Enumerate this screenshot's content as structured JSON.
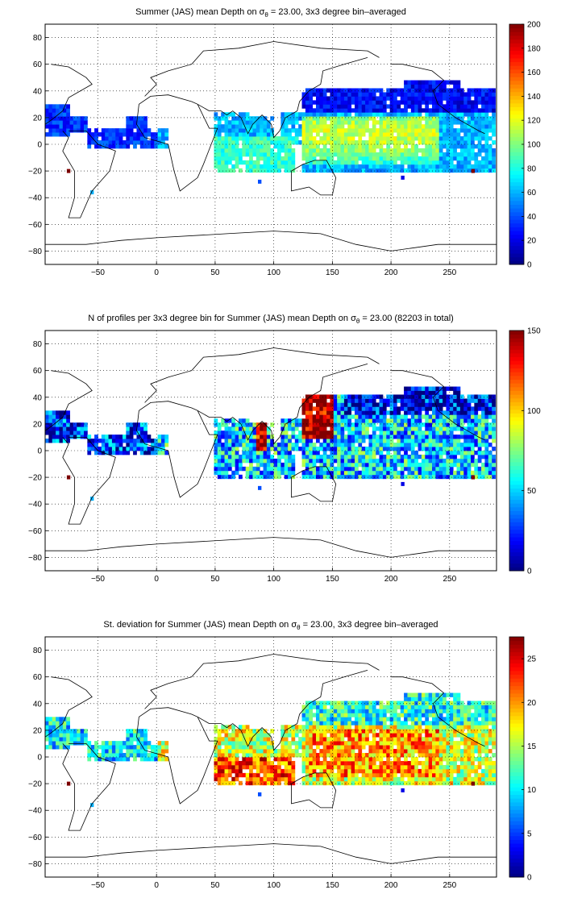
{
  "chart_data": [
    {
      "type": "heatmap",
      "title_prefix": "Summer (JAS) mean Depth on ",
      "title_sigma": "σ",
      "title_sub": "θ",
      "title_suffix": " = 23.00, 3x3 degree bin–averaged",
      "xlabel": "",
      "ylabel": "",
      "xlim": [
        -95,
        290
      ],
      "ylim": [
        -90,
        90
      ],
      "xticks": [
        -50,
        0,
        50,
        100,
        150,
        200,
        250
      ],
      "xtick_labels": [
        "−50",
        "0",
        "50",
        "100",
        "150",
        "200",
        "250"
      ],
      "yticks": [
        80,
        60,
        40,
        20,
        0,
        -20,
        -40,
        -60,
        -80
      ],
      "ytick_labels": [
        "80",
        "60",
        "40",
        "20",
        "0",
        "−20",
        "−40",
        "−60",
        "−80"
      ],
      "grid": true,
      "colormap": "jet",
      "clim": [
        0,
        200
      ],
      "cbar_ticks": [
        0,
        20,
        40,
        60,
        80,
        100,
        120,
        140,
        160,
        180,
        200
      ],
      "cbar_tick_labels": [
        "0",
        "20",
        "40",
        "60",
        "80",
        "100",
        "120",
        "140",
        "160",
        "180",
        "200"
      ],
      "field": "depth"
    },
    {
      "type": "heatmap",
      "title_prefix": "N of profiles per 3x3 degree bin for Summer (JAS) mean Depth on ",
      "title_sigma": "σ",
      "title_sub": "θ",
      "title_suffix": " = 23.00 (82203 in total)",
      "xlabel": "",
      "ylabel": "",
      "xlim": [
        -95,
        290
      ],
      "ylim": [
        -90,
        90
      ],
      "xticks": [
        -50,
        0,
        50,
        100,
        150,
        200,
        250
      ],
      "xtick_labels": [
        "−50",
        "0",
        "50",
        "100",
        "150",
        "200",
        "250"
      ],
      "yticks": [
        80,
        60,
        40,
        20,
        0,
        -20,
        -40,
        -60,
        -80
      ],
      "ytick_labels": [
        "80",
        "60",
        "40",
        "20",
        "0",
        "−20",
        "−40",
        "−60",
        "−80"
      ],
      "grid": true,
      "colormap": "jet",
      "clim": [
        0,
        150
      ],
      "cbar_ticks": [
        0,
        50,
        100,
        150
      ],
      "cbar_tick_labels": [
        "0",
        "50",
        "100",
        "150"
      ],
      "field": "count"
    },
    {
      "type": "heatmap",
      "title_prefix": "St. deviation for Summer (JAS) mean Depth on ",
      "title_sigma": "σ",
      "title_sub": "θ",
      "title_suffix": " = 23.00, 3x3 degree bin–averaged",
      "xlabel": "",
      "ylabel": "",
      "xlim": [
        -95,
        290
      ],
      "ylim": [
        -90,
        90
      ],
      "xticks": [
        -50,
        0,
        50,
        100,
        150,
        200,
        250
      ],
      "xtick_labels": [
        "−50",
        "0",
        "50",
        "100",
        "150",
        "200",
        "250"
      ],
      "yticks": [
        80,
        60,
        40,
        20,
        0,
        -20,
        -40,
        -60,
        -80
      ],
      "ytick_labels": [
        "80",
        "60",
        "40",
        "20",
        "0",
        "−20",
        "−40",
        "−60",
        "−80"
      ],
      "grid": true,
      "colormap": "jet",
      "clim": [
        0,
        27.5
      ],
      "cbar_ticks": [
        0,
        5,
        10,
        15,
        20,
        25
      ],
      "cbar_tick_labels": [
        "0",
        "5",
        "10",
        "15",
        "20",
        "25"
      ],
      "field": "std"
    }
  ],
  "ocean_regions": [
    {
      "lon": [
        -95,
        -75
      ],
      "lat": [
        5,
        30
      ]
    },
    {
      "lon": [
        -90,
        -60
      ],
      "lat": [
        8,
        22
      ]
    },
    {
      "lon": [
        -60,
        10
      ],
      "lat": [
        -3,
        12
      ]
    },
    {
      "lon": [
        -25,
        -8
      ],
      "lat": [
        12,
        22
      ]
    },
    {
      "lon": [
        48,
        80
      ],
      "lat": [
        -20,
        25
      ]
    },
    {
      "lon": [
        80,
        100
      ],
      "lat": [
        -20,
        22
      ]
    },
    {
      "lon": [
        100,
        118
      ],
      "lat": [
        -22,
        5
      ]
    },
    {
      "lon": [
        105,
        125
      ],
      "lat": [
        0,
        25
      ]
    },
    {
      "lon": [
        125,
        290
      ],
      "lat": [
        -20,
        42
      ]
    },
    {
      "lon": [
        210,
        260
      ],
      "lat": [
        28,
        48
      ]
    }
  ],
  "sparse_points": [
    {
      "lon": -75,
      "lat": -20,
      "v": 1.0
    },
    {
      "lon": 270,
      "lat": -20,
      "v": 1.0
    },
    {
      "lon": 88,
      "lat": -28,
      "v": 0.2
    },
    {
      "lon": 210,
      "lat": -25,
      "v": 0.1
    },
    {
      "lon": -55,
      "lat": -36,
      "v": 0.3
    }
  ]
}
